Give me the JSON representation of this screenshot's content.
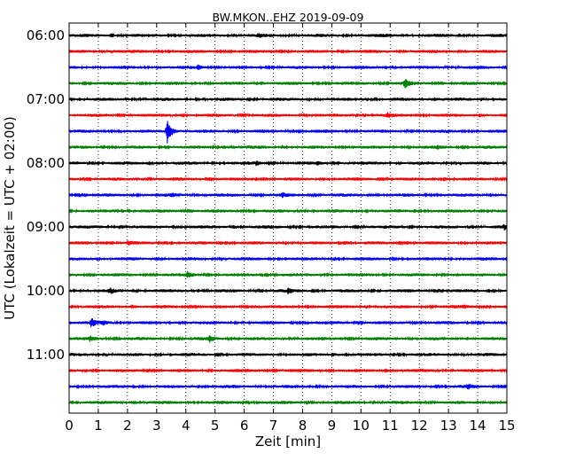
{
  "chart_data": {
    "type": "line",
    "title": "BW.MKON..EHZ 2019-09-09",
    "xlabel": "Zeit  [min]",
    "ylabel": "UTC (Lokalzeit = UTC + 02:00)",
    "xlim": [
      0,
      15
    ],
    "x_ticks": [
      "0",
      "1",
      "2",
      "3",
      "4",
      "5",
      "6",
      "7",
      "8",
      "9",
      "10",
      "11",
      "12",
      "13",
      "14",
      "15"
    ],
    "y_ticks": [
      "06:00",
      "07:00",
      "08:00",
      "09:00",
      "10:00",
      "11:00"
    ],
    "grid": "vertical-dotted",
    "trace_interval_min": 15,
    "trace_colors": [
      "#000000",
      "#ff0000",
      "#0000ff",
      "#008000"
    ],
    "traces": [
      {
        "start": "06:00",
        "events": [
          {
            "t": 6.5,
            "amp": 0.25
          },
          {
            "t": 10.7,
            "amp": 0.3
          }
        ]
      },
      {
        "start": "06:15",
        "events": [
          {
            "t": 1.4,
            "amp": 0.25
          }
        ]
      },
      {
        "start": "06:30",
        "events": [
          {
            "t": 4.4,
            "amp": 0.45
          }
        ]
      },
      {
        "start": "06:45",
        "events": [
          {
            "t": 11.5,
            "amp": 0.9
          }
        ]
      },
      {
        "start": "07:00",
        "events": [
          {
            "t": 12.5,
            "amp": 0.3
          }
        ]
      },
      {
        "start": "07:15",
        "events": [
          {
            "t": 10.9,
            "amp": 0.45
          }
        ]
      },
      {
        "start": "07:30",
        "events": [
          {
            "t": 3.35,
            "amp": 2.8
          }
        ]
      },
      {
        "start": "07:45",
        "events": [
          {
            "t": 12.6,
            "amp": 0.3
          }
        ]
      },
      {
        "start": "08:00",
        "events": [
          {
            "t": 6.4,
            "amp": 0.45
          },
          {
            "t": 8.5,
            "amp": 0.3
          }
        ]
      },
      {
        "start": "08:15",
        "events": []
      },
      {
        "start": "08:30",
        "events": [
          {
            "t": 3.5,
            "amp": 0.3
          },
          {
            "t": 7.3,
            "amp": 0.35
          }
        ]
      },
      {
        "start": "08:45",
        "events": []
      },
      {
        "start": "09:00",
        "events": [
          {
            "t": 5.6,
            "amp": 0.45
          },
          {
            "t": 14.9,
            "amp": 0.4
          }
        ]
      },
      {
        "start": "09:15",
        "events": [
          {
            "t": 2.0,
            "amp": 0.3
          }
        ]
      },
      {
        "start": "09:30",
        "events": []
      },
      {
        "start": "09:45",
        "events": [
          {
            "t": 4.05,
            "amp": 0.55
          }
        ]
      },
      {
        "start": "10:00",
        "events": [
          {
            "t": 1.4,
            "amp": 0.45
          },
          {
            "t": 7.5,
            "amp": 0.45
          }
        ]
      },
      {
        "start": "10:15",
        "events": [
          {
            "t": 13.5,
            "amp": 0.3
          }
        ]
      },
      {
        "start": "10:30",
        "events": [
          {
            "t": 0.75,
            "amp": 0.9
          },
          {
            "t": 1.15,
            "amp": 0.4
          }
        ]
      },
      {
        "start": "10:45",
        "events": [
          {
            "t": 0.7,
            "amp": 0.5
          },
          {
            "t": 4.8,
            "amp": 0.65
          }
        ]
      },
      {
        "start": "11:00",
        "events": [
          {
            "t": 9.0,
            "amp": 0.3
          }
        ]
      },
      {
        "start": "11:15",
        "events": []
      },
      {
        "start": "11:30",
        "events": [
          {
            "t": 13.65,
            "amp": 0.45
          }
        ]
      },
      {
        "start": "11:45",
        "events": []
      }
    ]
  }
}
